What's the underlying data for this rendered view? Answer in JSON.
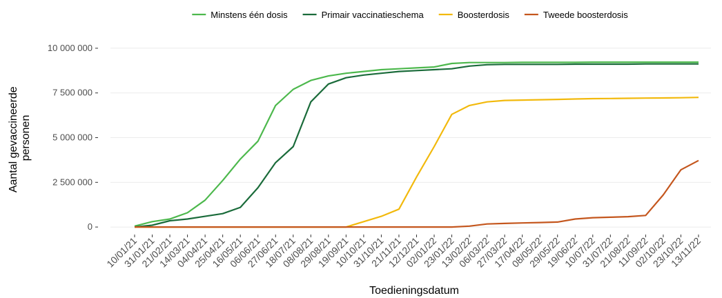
{
  "chart_data": {
    "type": "line",
    "ylabel": [
      "Aantal gevaccineerde",
      "personen"
    ],
    "xlabel": "Toedieningsdatum",
    "categories": [
      "10/01/21",
      "31/01/21",
      "21/02/21",
      "14/03/21",
      "04/04/21",
      "25/04/21",
      "16/05/21",
      "06/06/21",
      "27/06/21",
      "18/07/21",
      "08/08/21",
      "29/08/21",
      "19/09/21",
      "10/10/21",
      "31/10/21",
      "21/11/21",
      "12/12/21",
      "02/01/22",
      "23/01/22",
      "13/02/22",
      "06/03/22",
      "27/03/22",
      "17/04/22",
      "08/05/22",
      "29/05/22",
      "19/06/22",
      "10/07/22",
      "31/07/22",
      "21/08/22",
      "11/09/22",
      "02/10/22",
      "23/10/22",
      "13/11/22"
    ],
    "series": [
      {
        "name": "Minstens één dosis",
        "color": "#4cb84c",
        "values": [
          50000,
          300000,
          450000,
          800000,
          1500000,
          2600000,
          3800000,
          4800000,
          6800000,
          7700000,
          8200000,
          8450000,
          8600000,
          8700000,
          8800000,
          8850000,
          8900000,
          8950000,
          9150000,
          9200000,
          9200000,
          9200000,
          9210000,
          9210000,
          9210000,
          9210000,
          9220000,
          9220000,
          9220000,
          9220000,
          9220000,
          9220000,
          9220000
        ]
      },
      {
        "name": "Primair vaccinatieschema",
        "color": "#1a6b3a",
        "values": [
          0,
          100000,
          350000,
          450000,
          600000,
          750000,
          1100000,
          2200000,
          3600000,
          4500000,
          7000000,
          8000000,
          8350000,
          8500000,
          8600000,
          8700000,
          8750000,
          8800000,
          8850000,
          9000000,
          9080000,
          9100000,
          9100000,
          9100000,
          9100000,
          9110000,
          9110000,
          9110000,
          9110000,
          9120000,
          9120000,
          9120000,
          9120000
        ]
      },
      {
        "name": "Boosterdosis",
        "color": "#f2b90c",
        "values": [
          0,
          0,
          0,
          0,
          0,
          0,
          0,
          0,
          0,
          0,
          0,
          0,
          0,
          300000,
          600000,
          1000000,
          2800000,
          4500000,
          6300000,
          6800000,
          7000000,
          7080000,
          7100000,
          7120000,
          7140000,
          7160000,
          7180000,
          7190000,
          7200000,
          7210000,
          7220000,
          7230000,
          7250000
        ]
      },
      {
        "name": "Tweede boosterdosis",
        "color": "#c4561d",
        "values": [
          0,
          0,
          0,
          0,
          0,
          0,
          0,
          0,
          0,
          0,
          0,
          0,
          0,
          0,
          0,
          0,
          0,
          0,
          0,
          50000,
          170000,
          200000,
          230000,
          250000,
          280000,
          450000,
          520000,
          550000,
          580000,
          650000,
          1800000,
          3200000,
          3720000
        ]
      }
    ],
    "ylim": [
      -420000,
      10460000
    ],
    "yticks": [
      0,
      {
        "value": 2500000,
        "label": "2 500 000"
      },
      {
        "value": 5000000,
        "label": "5 000 000"
      },
      {
        "value": 7500000,
        "label": "7 500 000"
      },
      {
        "value": 10000000,
        "label": "10 000 000"
      }
    ],
    "grid": true,
    "legend": "top"
  }
}
